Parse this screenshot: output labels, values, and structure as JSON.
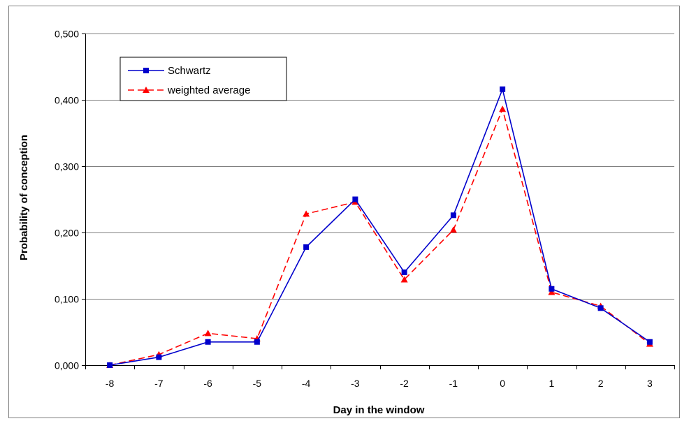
{
  "chart_data": {
    "type": "line",
    "title": "",
    "xlabel": "Day in the window",
    "ylabel": "Probability of conception",
    "categories": [
      "-8",
      "-7",
      "-6",
      "-5",
      "-4",
      "-3",
      "-2",
      "-1",
      "0",
      "1",
      "2",
      "3"
    ],
    "ylim": [
      0,
      0.5
    ],
    "yticks": [
      "0,000",
      "0,100",
      "0,200",
      "0,300",
      "0,400",
      "0,500"
    ],
    "grid": "horizontal",
    "legend_position": "top-left",
    "series": [
      {
        "name": "Schwartz",
        "color": "#0000cc",
        "line_style": "solid",
        "marker": "square",
        "values": [
          0.0,
          0.012,
          0.035,
          0.035,
          0.178,
          0.25,
          0.14,
          0.226,
          0.416,
          0.115,
          0.086,
          0.035
        ]
      },
      {
        "name": "weighted average",
        "color": "#ff0000",
        "line_style": "dashed",
        "marker": "triangle",
        "values": [
          0.0,
          0.016,
          0.048,
          0.04,
          0.228,
          0.246,
          0.129,
          0.204,
          0.386,
          0.11,
          0.089,
          0.032
        ]
      }
    ]
  }
}
